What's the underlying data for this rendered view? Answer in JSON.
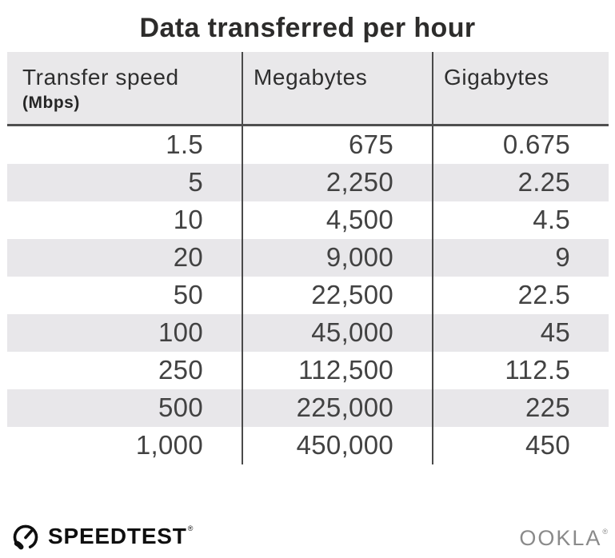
{
  "title": "Data transferred per hour",
  "table": {
    "columns": [
      {
        "label": "Transfer speed",
        "sublabel": "(Mbps)"
      },
      {
        "label": "Megabytes"
      },
      {
        "label": "Gigabytes"
      }
    ],
    "rows": [
      [
        "1.5",
        "675",
        "0.675"
      ],
      [
        "5",
        "2,250",
        "2.25"
      ],
      [
        "10",
        "4,500",
        "4.5"
      ],
      [
        "20",
        "9,000",
        "9"
      ],
      [
        "50",
        "22,500",
        "22.5"
      ],
      [
        "100",
        "45,000",
        "45"
      ],
      [
        "250",
        "112,500",
        "112.5"
      ],
      [
        "500",
        "225,000",
        "225"
      ],
      [
        "1,000",
        "450,000",
        "450"
      ]
    ]
  },
  "footer": {
    "speedtest_label": "SPEEDTEST",
    "speedtest_trademark": "®",
    "ookla_label": "OOKLA",
    "ookla_trademark": "®"
  },
  "icons": {
    "speedtest_gauge": "speedometer-gauge-icon"
  },
  "colors": {
    "header_bg": "#e9e8ea",
    "stripe_bg": "#e8e7ea",
    "divider": "#4a4a4a",
    "header_underline": "#4f4f4f",
    "title_text": "#2d2c2b",
    "cell_text": "#424242",
    "speedtest_black": "#0f0f0f",
    "ookla_gray": "#8a8a8a"
  },
  "chart_data": {
    "type": "table",
    "title": "Data transferred per hour",
    "columns": [
      "Transfer speed (Mbps)",
      "Megabytes",
      "Gigabytes"
    ],
    "transfer_speed_mbps": [
      1.5,
      5,
      10,
      20,
      50,
      100,
      250,
      500,
      1000
    ],
    "megabytes": [
      675,
      2250,
      4500,
      9000,
      22500,
      45000,
      112500,
      225000,
      450000
    ],
    "gigabytes": [
      0.675,
      2.25,
      4.5,
      9,
      22.5,
      45,
      112.5,
      225,
      450
    ]
  }
}
